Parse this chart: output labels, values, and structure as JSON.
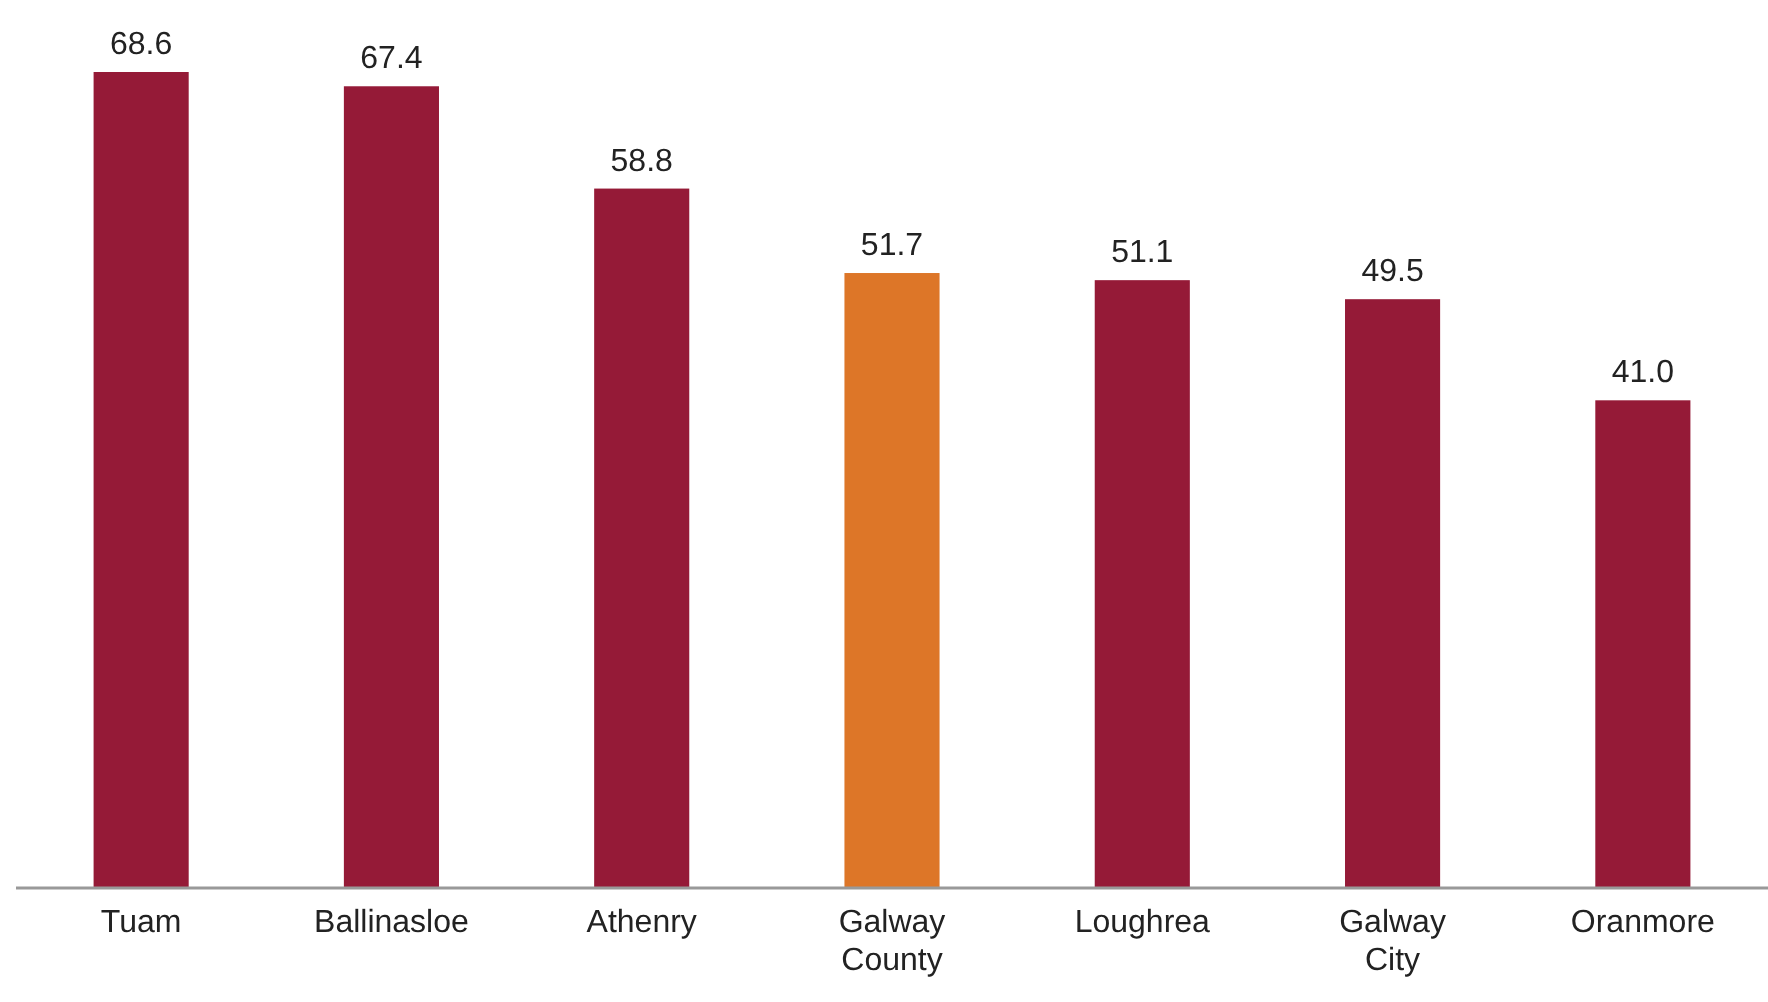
{
  "chart_data": {
    "type": "bar",
    "categories": [
      "Tuam",
      "Ballinasloe",
      "Athenry",
      "Galway County",
      "Loughrea",
      "Galway City",
      "Oranmore"
    ],
    "values": [
      68.6,
      67.4,
      58.8,
      51.7,
      51.1,
      49.5,
      41.0
    ],
    "value_labels": [
      "68.6",
      "67.4",
      "58.8",
      "51.7",
      "51.1",
      "49.5",
      "41.0"
    ],
    "colors": [
      "#951a37",
      "#951a37",
      "#951a37",
      "#dd7628",
      "#951a37",
      "#951a37",
      "#951a37"
    ]
  }
}
